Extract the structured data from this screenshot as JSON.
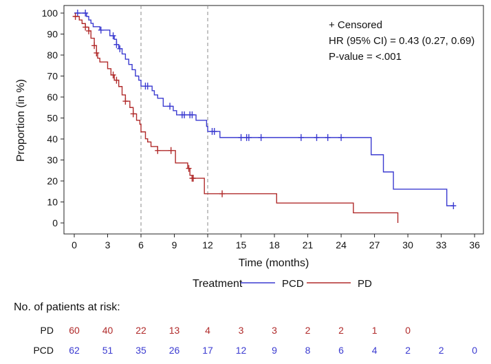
{
  "chart_data": {
    "type": "line",
    "subtype": "kaplan-meier",
    "xlabel": "Time (months)",
    "ylabel": "Proportion (in %)",
    "xlim": [
      -1,
      37
    ],
    "ylim": [
      -3,
      102
    ],
    "xticks": [
      0,
      3,
      6,
      9,
      12,
      15,
      18,
      21,
      24,
      27,
      30,
      33,
      36
    ],
    "yticks": [
      0,
      10,
      20,
      30,
      40,
      50,
      60,
      70,
      80,
      90,
      100
    ],
    "reference_lines_x": [
      6,
      12
    ],
    "annotations": [
      "+ Censored",
      "HR (95% CI) = 0.43 (0.27, 0.69)",
      "P-value = <.001"
    ],
    "legend": {
      "title": "Treatment",
      "placement": "bottom"
    },
    "series": [
      {
        "name": "PCD",
        "color": "#3a3ad0",
        "steps": [
          [
            0,
            100
          ],
          [
            1.1,
            98.4
          ],
          [
            1.3,
            96.7
          ],
          [
            1.5,
            95.1
          ],
          [
            1.7,
            93.5
          ],
          [
            2.3,
            91.9
          ],
          [
            3.2,
            89.2
          ],
          [
            3.6,
            87.5
          ],
          [
            3.8,
            85
          ],
          [
            4.0,
            83
          ],
          [
            4.3,
            80.5
          ],
          [
            4.6,
            78
          ],
          [
            4.9,
            75.5
          ],
          [
            5.2,
            73
          ],
          [
            5.5,
            70
          ],
          [
            5.8,
            68
          ],
          [
            6.0,
            65.2
          ],
          [
            7.0,
            63
          ],
          [
            7.2,
            61
          ],
          [
            7.5,
            59.4
          ],
          [
            8.0,
            55.6
          ],
          [
            8.9,
            53.5
          ],
          [
            9.2,
            51.5
          ],
          [
            10.95,
            48.9
          ],
          [
            11.9,
            46
          ],
          [
            12.0,
            43.6
          ],
          [
            13.1,
            40.7
          ],
          [
            26.7,
            32.5
          ],
          [
            27.8,
            24.3
          ],
          [
            28.7,
            16.1
          ],
          [
            33.5,
            8.2
          ],
          [
            34.1,
            8.2
          ]
        ],
        "censored": [
          0.3,
          1.0,
          2.4,
          3.5,
          3.8,
          4.1,
          6.4,
          6.6,
          8.6,
          9.7,
          9.9,
          10.4,
          10.6,
          12.4,
          12.6,
          15.0,
          15.5,
          15.7,
          16.8,
          20.4,
          21.8,
          22.8,
          24.0,
          34.1
        ]
      },
      {
        "name": "PD",
        "color": "#b02a2a",
        "steps": [
          [
            0,
            98.4
          ],
          [
            0.45,
            96.7
          ],
          [
            0.7,
            95
          ],
          [
            1.0,
            93.3
          ],
          [
            1.3,
            91.5
          ],
          [
            1.5,
            88
          ],
          [
            1.8,
            84.5
          ],
          [
            2.0,
            81
          ],
          [
            2.1,
            78.5
          ],
          [
            2.3,
            76.7
          ],
          [
            3.0,
            73.5
          ],
          [
            3.3,
            70.5
          ],
          [
            3.6,
            68
          ],
          [
            4.0,
            65
          ],
          [
            4.3,
            61
          ],
          [
            4.6,
            58
          ],
          [
            5.0,
            55
          ],
          [
            5.3,
            52
          ],
          [
            5.6,
            48.9
          ],
          [
            5.9,
            47
          ],
          [
            6.0,
            43.4
          ],
          [
            6.4,
            40.1
          ],
          [
            6.6,
            38.6
          ],
          [
            6.9,
            36.4
          ],
          [
            7.5,
            34.5
          ],
          [
            9.1,
            28.6
          ],
          [
            10.2,
            26
          ],
          [
            10.4,
            22.7
          ],
          [
            10.6,
            21.3
          ],
          [
            11.7,
            13.9
          ],
          [
            18.2,
            9.5
          ],
          [
            25.1,
            4.8
          ],
          [
            29.1,
            0
          ]
        ],
        "censored": [
          0.1,
          1.0,
          1.3,
          1.8,
          2.0,
          3.5,
          3.8,
          4.6,
          5.3,
          7.5,
          8.7,
          10.3,
          10.6,
          10.7,
          13.3
        ]
      }
    ],
    "risk_table": {
      "title": "No. of patients at risk:",
      "times": [
        0,
        3,
        6,
        9,
        12,
        15,
        18,
        21,
        24,
        27,
        30,
        33,
        36
      ],
      "rows": [
        {
          "name": "PD",
          "color": "#b02a2a",
          "values": [
            60,
            40,
            22,
            13,
            4,
            3,
            3,
            2,
            2,
            1,
            0
          ]
        },
        {
          "name": "PCD",
          "color": "#3a3ad0",
          "values": [
            62,
            51,
            35,
            26,
            17,
            12,
            9,
            8,
            6,
            4,
            2,
            2,
            0
          ]
        }
      ]
    }
  }
}
